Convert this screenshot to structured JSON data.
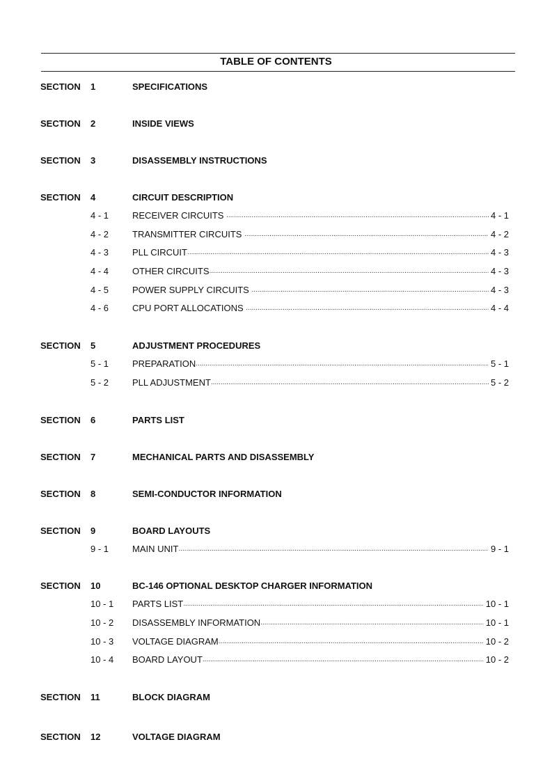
{
  "title": "TABLE OF CONTENTS",
  "section_label": "SECTION",
  "sections": [
    {
      "num": "1",
      "title": "SPECIFICATIONS",
      "items": []
    },
    {
      "num": "2",
      "title": "INSIDE VIEWS",
      "items": []
    },
    {
      "num": "3",
      "title": "DISASSEMBLY INSTRUCTIONS",
      "items": []
    },
    {
      "num": "4",
      "title": "CIRCUIT DESCRIPTION",
      "items": [
        {
          "num": "4 - 1",
          "title": "RECEIVER CIRCUITS ",
          "page": "4 - 1"
        },
        {
          "num": "4 - 2",
          "title": "TRANSMITTER CIRCUITS ",
          "page": "4 - 2"
        },
        {
          "num": "4 - 3",
          "title": "PLL CIRCUIT",
          "page": "4 - 3"
        },
        {
          "num": "4 - 4",
          "title": "OTHER CIRCUITS",
          "page": "4 - 3"
        },
        {
          "num": "4 - 5",
          "title": "POWER SUPPLY CIRCUITS ",
          "page": "4 - 3"
        },
        {
          "num": "4 - 6",
          "title": "CPU PORT ALLOCATIONS ",
          "page": "4 - 4"
        }
      ]
    },
    {
      "num": "5",
      "title": "ADJUSTMENT PROCEDURES",
      "items": [
        {
          "num": "5 - 1",
          "title": "PREPARATION",
          "page": "5 - 1"
        },
        {
          "num": "5 - 2",
          "title": "PLL ADJUSTMENT",
          "page": "5 - 2"
        }
      ]
    },
    {
      "num": "6",
      "title": "PARTS LIST",
      "items": []
    },
    {
      "num": "7",
      "title": "MECHANICAL PARTS AND DISASSEMBLY",
      "items": []
    },
    {
      "num": "8",
      "title": "SEMI-CONDUCTOR INFORMATION",
      "items": []
    },
    {
      "num": "9",
      "title": "BOARD LAYOUTS",
      "items": [
        {
          "num": "9 - 1",
          "title": "MAIN UNIT",
          "page": "9 - 1"
        }
      ]
    },
    {
      "num": "10",
      "title": "BC-146 OPTIONAL DESKTOP CHARGER INFORMATION",
      "items": [
        {
          "num": "10 - 1",
          "title": "PARTS LIST",
          "page": "10 - 1"
        },
        {
          "num": "10 - 2",
          "title": "DISASSEMBLY INFORMATION",
          "page": "10 - 1"
        },
        {
          "num": "10 - 3",
          "title": "VOLTAGE DIAGRAM",
          "page": "10 - 2"
        },
        {
          "num": "10 - 4",
          "title": "BOARD LAYOUT",
          "page": "10 - 2"
        }
      ]
    },
    {
      "num": "11",
      "title": "BLOCK DIAGRAM",
      "items": []
    },
    {
      "num": "12",
      "title": "VOLTAGE DIAGRAM",
      "items": []
    }
  ]
}
